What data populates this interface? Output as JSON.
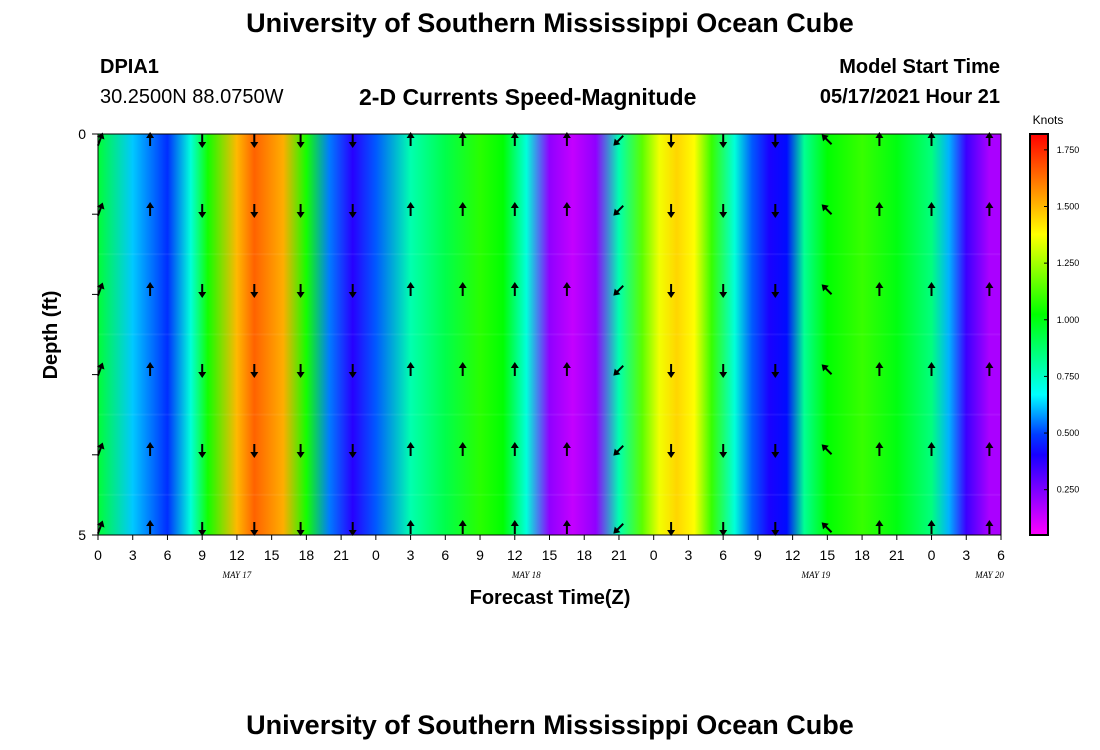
{
  "header": {
    "title": "University of Southern Mississippi Ocean Cube",
    "footer_title": "University of Southern Mississippi Ocean Cube",
    "station_id": "DPIA1",
    "station_coords": "30.2500N  88.0750W",
    "chart_title": "2-D Currents Speed-Magnitude",
    "model_start_label": "Model Start Time",
    "model_start_value": "05/17/2021 Hour 21"
  },
  "chart_data": {
    "type": "heatmap",
    "title": "2-D Currents Speed-Magnitude",
    "xlabel": "Forecast Time(Z)",
    "ylabel": "Depth (ft)",
    "ylim": [
      0,
      5
    ],
    "y_tick_labels": [
      "0",
      "",
      "",
      "",
      "",
      "5"
    ],
    "x_tick_labels": [
      "0",
      "3",
      "6",
      "9",
      "12",
      "15",
      "18",
      "21",
      "0",
      "3",
      "6",
      "9",
      "12",
      "15",
      "18",
      "21",
      "0",
      "3",
      "6",
      "9",
      "12",
      "15",
      "18",
      "21",
      "0",
      "3",
      "6"
    ],
    "date_labels": [
      {
        "label": "MAY 17",
        "x_index": 4
      },
      {
        "label": "MAY 18",
        "x_index": 12.33
      },
      {
        "label": "MAY 19",
        "x_index": 20.67
      },
      {
        "label": "MAY 20",
        "x_index": 25.67
      }
    ],
    "colorbar": {
      "unit": "Knots",
      "min": 0.05,
      "max": 1.82,
      "ticks": [
        "0.250",
        "0.500",
        "0.750",
        "1.000",
        "1.250",
        "1.500",
        "1.750"
      ],
      "tick_values": [
        0.25,
        0.5,
        0.75,
        1.0,
        1.25,
        1.5,
        1.75
      ]
    },
    "speed_profile_knots": [
      {
        "h": 0,
        "speed": 0.95
      },
      {
        "h": 3,
        "speed": 0.62
      },
      {
        "h": 6,
        "speed": 0.48
      },
      {
        "h": 8,
        "speed": 0.72
      },
      {
        "h": 9.5,
        "speed": 1.05
      },
      {
        "h": 12,
        "speed": 1.5
      },
      {
        "h": 13.5,
        "speed": 1.65
      },
      {
        "h": 16,
        "speed": 1.52
      },
      {
        "h": 18,
        "speed": 1.05
      },
      {
        "h": 20,
        "speed": 0.55
      },
      {
        "h": 22,
        "speed": 0.38
      },
      {
        "h": 24,
        "speed": 0.52
      },
      {
        "h": 27,
        "speed": 0.78
      },
      {
        "h": 30,
        "speed": 0.92
      },
      {
        "h": 33,
        "speed": 1.08
      },
      {
        "h": 35,
        "speed": 1.02
      },
      {
        "h": 37,
        "speed": 0.72
      },
      {
        "h": 39,
        "speed": 0.22
      },
      {
        "h": 41,
        "speed": 0.14
      },
      {
        "h": 43,
        "speed": 0.22
      },
      {
        "h": 45,
        "speed": 0.78
      },
      {
        "h": 47,
        "speed": 1.15
      },
      {
        "h": 48.5,
        "speed": 1.36
      },
      {
        "h": 50,
        "speed": 1.45
      },
      {
        "h": 51.5,
        "speed": 1.38
      },
      {
        "h": 53,
        "speed": 1.1
      },
      {
        "h": 55,
        "speed": 0.72
      },
      {
        "h": 56.5,
        "speed": 0.52
      },
      {
        "h": 58,
        "speed": 0.4
      },
      {
        "h": 59.5,
        "speed": 0.45
      },
      {
        "h": 61,
        "speed": 0.82
      },
      {
        "h": 63,
        "speed": 1.02
      },
      {
        "h": 66,
        "speed": 1.1
      },
      {
        "h": 69,
        "speed": 1.0
      },
      {
        "h": 72,
        "speed": 0.85
      },
      {
        "h": 73.5,
        "speed": 0.6
      },
      {
        "h": 75,
        "speed": 0.35
      },
      {
        "h": 77,
        "speed": 0.18
      }
    ],
    "arrow_columns_hours": [
      0,
      4.5,
      9,
      13.5,
      17.5,
      22,
      27,
      31.5,
      36,
      40.5,
      45,
      49.5,
      54,
      58.5,
      63,
      67.5,
      72,
      77
    ],
    "arrow_directions_deg": [
      20,
      0,
      180,
      180,
      180,
      180,
      0,
      0,
      0,
      0,
      225,
      180,
      180,
      180,
      315,
      0,
      0,
      0
    ]
  }
}
